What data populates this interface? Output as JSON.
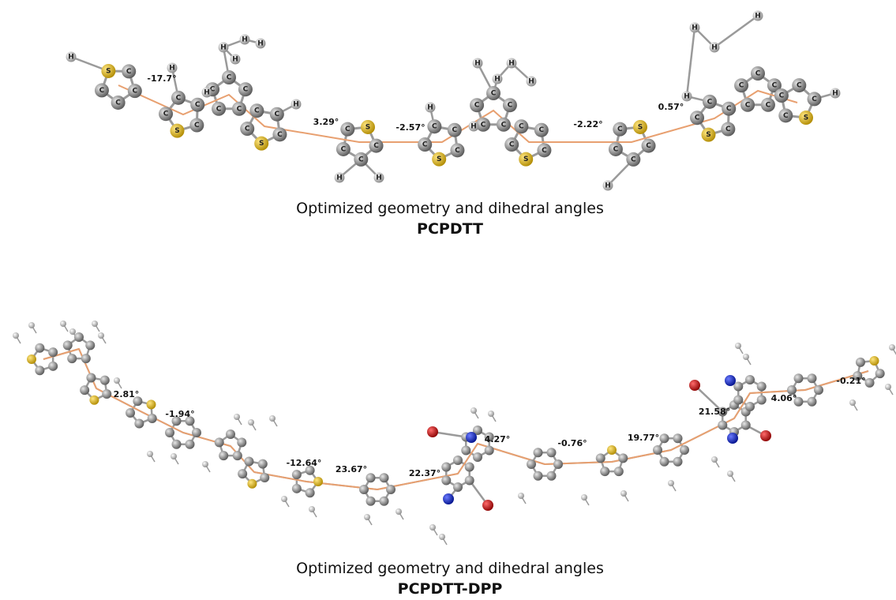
{
  "top": {
    "rings": [
      [
        "S",
        "C",
        "C",
        "C",
        "C"
      ],
      [
        "S",
        "C",
        "C",
        "C",
        "C"
      ],
      [
        "C",
        "C",
        "C",
        "C",
        "C"
      ],
      [
        "S",
        "C",
        "C",
        "C",
        "C"
      ],
      [
        "S",
        "C",
        "C",
        "C",
        "C"
      ],
      [
        "S",
        "C",
        "C",
        "C",
        "C"
      ],
      [
        "C",
        "C",
        "C",
        "C",
        "C"
      ],
      [
        "S",
        "C",
        "C",
        "C",
        "C"
      ],
      [
        "S",
        "C",
        "C",
        "C",
        "C"
      ],
      [
        "S",
        "C",
        "C",
        "C",
        "C"
      ],
      [
        "C",
        "C",
        "C",
        "C",
        "C"
      ],
      [
        "S",
        "C",
        "C",
        "C",
        "C"
      ]
    ],
    "hydrogens": [
      "H",
      "H",
      "H",
      "H",
      "H",
      "H",
      "H",
      "H",
      "H",
      "H",
      "H",
      "H",
      "H",
      "H",
      "H",
      "H",
      "H",
      "H",
      "H",
      "H",
      "H",
      "H"
    ],
    "dihedral_angles": [
      "-17.7°",
      "3.29°",
      "-2.57°",
      "-2.22°",
      "0.57°"
    ],
    "caption": "Optimized geometry and dihedral angles",
    "name": "PCPDTT"
  },
  "bottom": {
    "dihedral_angles": [
      "2.81°",
      "-1.94°",
      "-12.64°",
      "23.67°",
      "22.37°",
      "4.27°",
      "-0.76°",
      "19.77°",
      "21.58°",
      "4.06°",
      "-0.21°"
    ],
    "caption": "Optimized geometry and dihedral angles",
    "name": "PCPDTT-DPP"
  }
}
